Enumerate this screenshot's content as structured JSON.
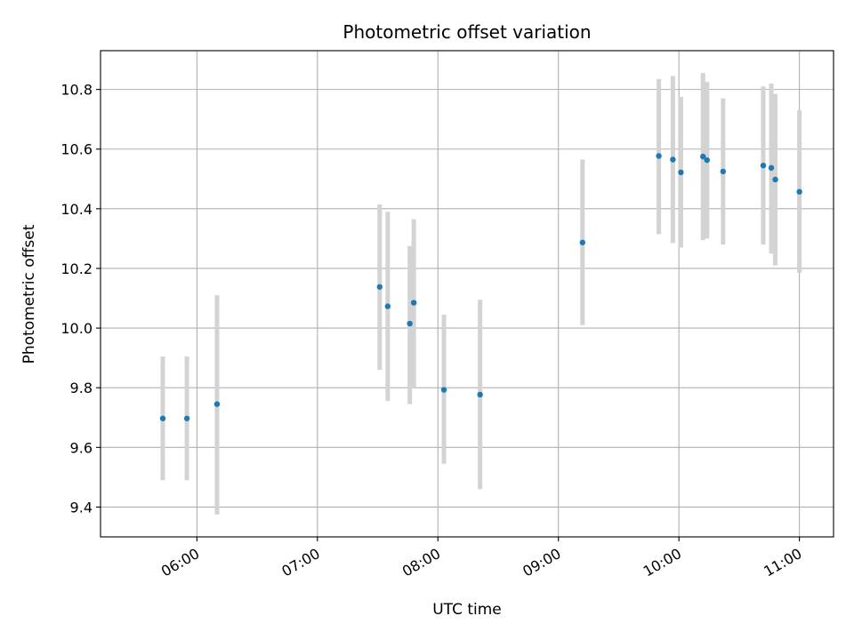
{
  "chart_data": {
    "type": "scatter",
    "title": "Photometric offset variation",
    "xlabel": "UTC time",
    "ylabel": "Photometric offset",
    "x_unit": "time of day (UTC)",
    "xlim": [
      "05:12",
      "11:17"
    ],
    "ylim": [
      9.3,
      10.93
    ],
    "x_ticks": [
      "06:00",
      "07:00",
      "08:00",
      "09:00",
      "10:00",
      "11:00"
    ],
    "y_ticks": [
      9.4,
      9.6,
      9.8,
      10.0,
      10.2,
      10.4,
      10.6,
      10.8
    ],
    "grid": true,
    "x_tick_rotation": 30,
    "colors": {
      "points": "#1f77b4",
      "errorbars": "#d3d3d3",
      "grid": "#b0b0b0"
    },
    "series": [
      {
        "points": [
          {
            "x": "05:43",
            "y": 9.697,
            "ylow": 9.49,
            "yhigh": 9.905
          },
          {
            "x": "05:55",
            "y": 9.697,
            "ylow": 9.49,
            "yhigh": 9.905
          },
          {
            "x": "06:10",
            "y": 9.745,
            "ylow": 9.375,
            "yhigh": 10.11
          },
          {
            "x": "07:31",
            "y": 10.138,
            "ylow": 9.86,
            "yhigh": 10.415
          },
          {
            "x": "07:35",
            "y": 10.073,
            "ylow": 9.755,
            "yhigh": 10.39
          },
          {
            "x": "07:46",
            "y": 10.015,
            "ylow": 9.745,
            "yhigh": 10.275
          },
          {
            "x": "07:48",
            "y": 10.085,
            "ylow": 9.8,
            "yhigh": 10.365
          },
          {
            "x": "08:03",
            "y": 9.793,
            "ylow": 9.545,
            "yhigh": 10.045
          },
          {
            "x": "08:21",
            "y": 9.777,
            "ylow": 9.46,
            "yhigh": 10.095
          },
          {
            "x": "09:12",
            "y": 10.287,
            "ylow": 10.01,
            "yhigh": 10.565
          },
          {
            "x": "09:50",
            "y": 10.577,
            "ylow": 10.315,
            "yhigh": 10.835
          },
          {
            "x": "09:57",
            "y": 10.565,
            "ylow": 10.285,
            "yhigh": 10.845
          },
          {
            "x": "10:01",
            "y": 10.522,
            "ylow": 10.27,
            "yhigh": 10.775
          },
          {
            "x": "10:12",
            "y": 10.575,
            "ylow": 10.295,
            "yhigh": 10.855
          },
          {
            "x": "10:14",
            "y": 10.563,
            "ylow": 10.3,
            "yhigh": 10.825
          },
          {
            "x": "10:22",
            "y": 10.525,
            "ylow": 10.28,
            "yhigh": 10.77
          },
          {
            "x": "10:42",
            "y": 10.545,
            "ylow": 10.28,
            "yhigh": 10.81
          },
          {
            "x": "10:46",
            "y": 10.537,
            "ylow": 10.25,
            "yhigh": 10.82
          },
          {
            "x": "10:48",
            "y": 10.498,
            "ylow": 10.21,
            "yhigh": 10.785
          },
          {
            "x": "11:00",
            "y": 10.457,
            "ylow": 10.185,
            "yhigh": 10.73
          }
        ]
      }
    ]
  }
}
